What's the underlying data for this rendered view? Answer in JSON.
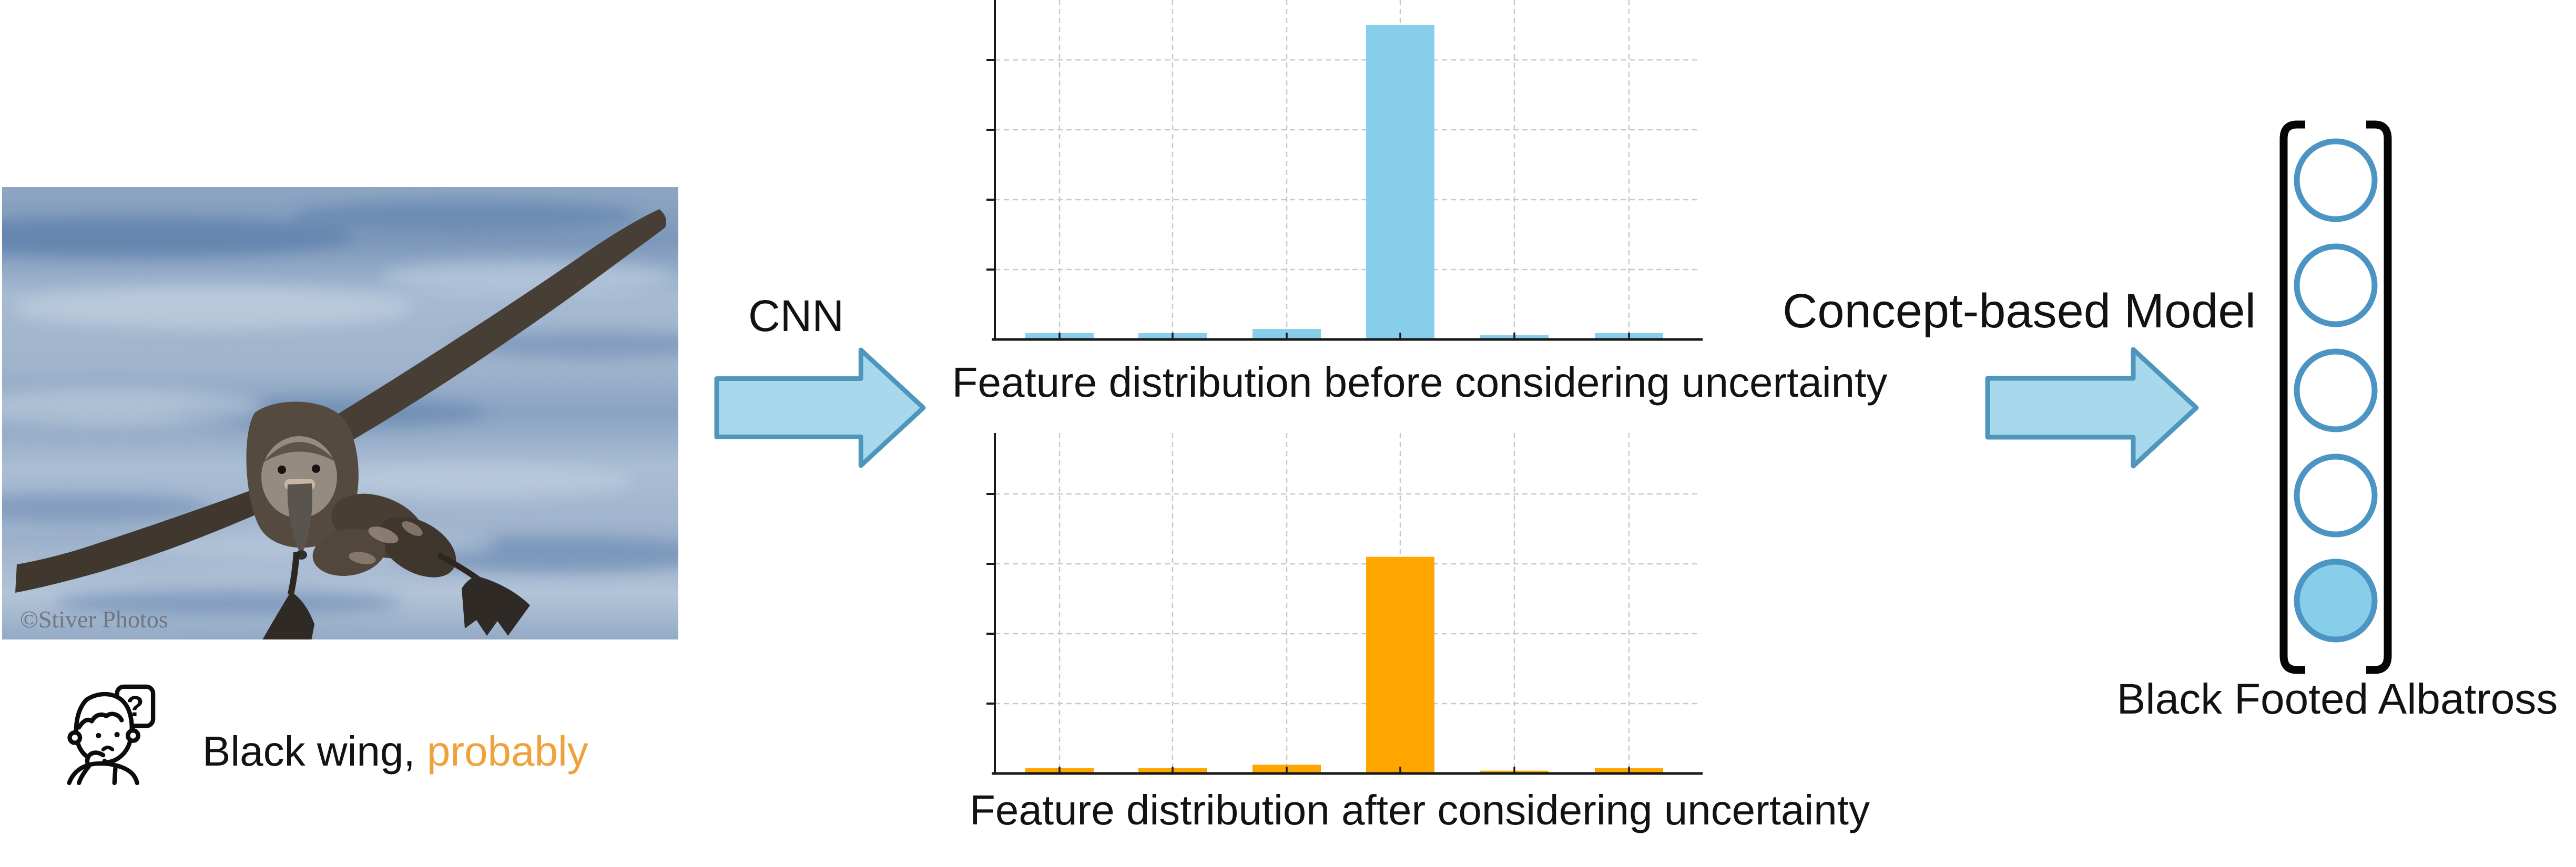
{
  "photo": {
    "watermark": "©Stiver Photos",
    "description": "Black Footed Albatross gliding low over blue ocean water, wings spread, webbed feet dangling"
  },
  "thought": {
    "black_text": "Black wing,",
    "orange_text": "probably",
    "bubble_symbol": "?"
  },
  "labels": {
    "cnn": "CNN",
    "concept_model": "Concept-based Model",
    "output_class": "Black Footed Albatross"
  },
  "colors": {
    "bar_blue": "#87CEEB",
    "bar_orange": "#FFA500",
    "arrow_fill": "#A7D8EC",
    "arrow_stroke": "#4E96BB",
    "node_stroke": "#4B94C3",
    "node_fill_active": "#87CEEB",
    "highlight_orange": "#EFA23B",
    "gridline": "#c9c9c9",
    "axis": "#1a1a1a"
  },
  "chart_data": [
    {
      "type": "bar",
      "title": "Feature distribution before considering uncertainty",
      "categories": [
        "",
        "",
        "",
        "",
        "",
        ""
      ],
      "values": [
        0.018,
        0.018,
        0.03,
        0.9,
        0.012,
        0.018
      ],
      "bar_color": "#87CEEB",
      "xlabel": "",
      "ylabel": "",
      "ylim": [
        0,
        0.97
      ],
      "gridline_interval": 0.2,
      "grid": "dashed horizontal and vertical",
      "tick_labels_visible": false,
      "legend": "none"
    },
    {
      "type": "bar",
      "title": "Feature distribution after considering uncertainty",
      "categories": [
        "",
        "",
        "",
        "",
        "",
        ""
      ],
      "values": [
        0.015,
        0.015,
        0.025,
        0.62,
        0.008,
        0.015
      ],
      "bar_color": "#FFA500",
      "xlabel": "",
      "ylabel": "",
      "ylim": [
        0,
        0.97
      ],
      "gridline_interval": 0.2,
      "grid": "dashed horizontal and vertical",
      "tick_labels_visible": false,
      "legend": "none"
    }
  ],
  "concept_vector": {
    "node_count": 5,
    "values": [
      0,
      0,
      0,
      0,
      1
    ],
    "active_index": 4,
    "label": "Black Footed Albatross"
  }
}
